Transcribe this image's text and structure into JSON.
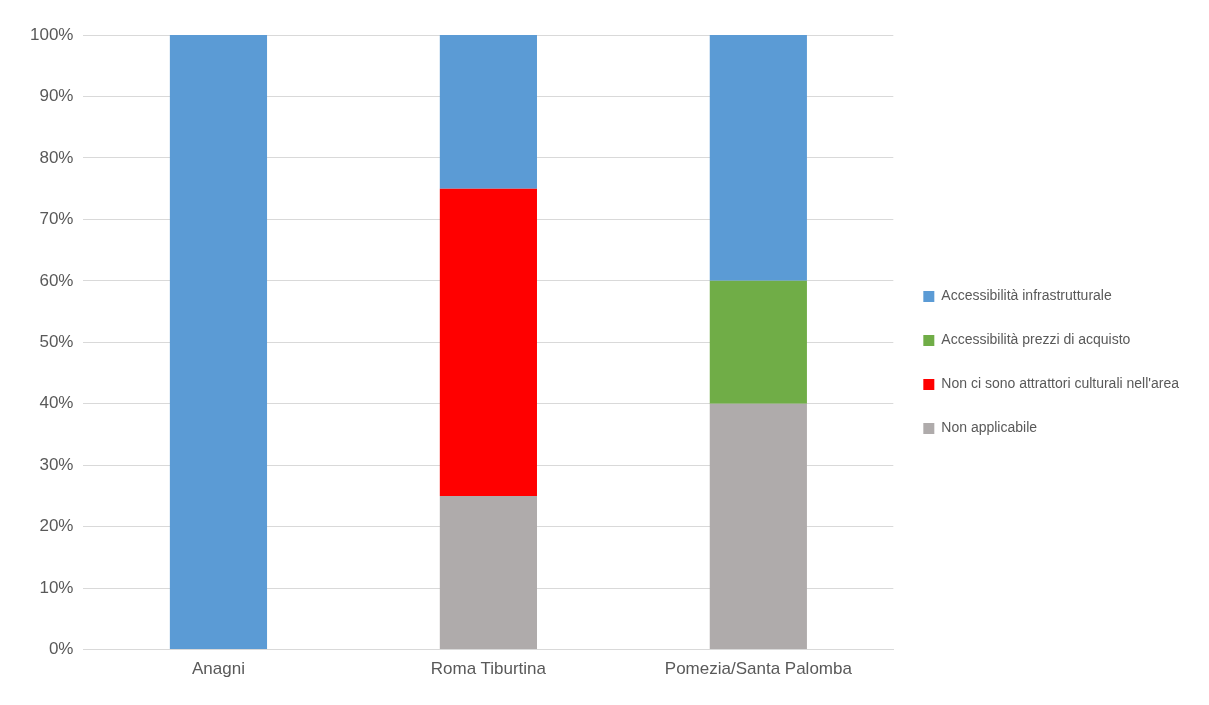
{
  "chart_data": {
    "type": "bar",
    "stacked": true,
    "categories": [
      "Anagni",
      "Roma Tiburtina",
      "Pomezia/Santa Palomba"
    ],
    "series": [
      {
        "name": "Non applicabile",
        "color": "#afabab",
        "values": [
          0,
          25,
          40
        ]
      },
      {
        "name": "Non ci sono attrattori culturali nell'area",
        "color": "#ff0000",
        "values": [
          0,
          50,
          0
        ]
      },
      {
        "name": "Accessibilità prezzi di acquisto",
        "color": "#70ad47",
        "values": [
          0,
          0,
          20
        ]
      },
      {
        "name": "Accessibilità infrastrutturale",
        "color": "#5b9bd5",
        "values": [
          100,
          25,
          40
        ]
      }
    ],
    "ylim": [
      0,
      100
    ],
    "yticks": [
      {
        "value": 0,
        "label": "0%"
      },
      {
        "value": 10,
        "label": "10%"
      },
      {
        "value": 20,
        "label": "20%"
      },
      {
        "value": 30,
        "label": "30%"
      },
      {
        "value": 40,
        "label": "40%"
      },
      {
        "value": 50,
        "label": "50%"
      },
      {
        "value": 60,
        "label": "60%"
      },
      {
        "value": 70,
        "label": "70%"
      },
      {
        "value": 80,
        "label": "80%"
      },
      {
        "value": 90,
        "label": "90%"
      },
      {
        "value": 100,
        "label": "100%"
      }
    ],
    "grid": "y",
    "legend": "right"
  }
}
